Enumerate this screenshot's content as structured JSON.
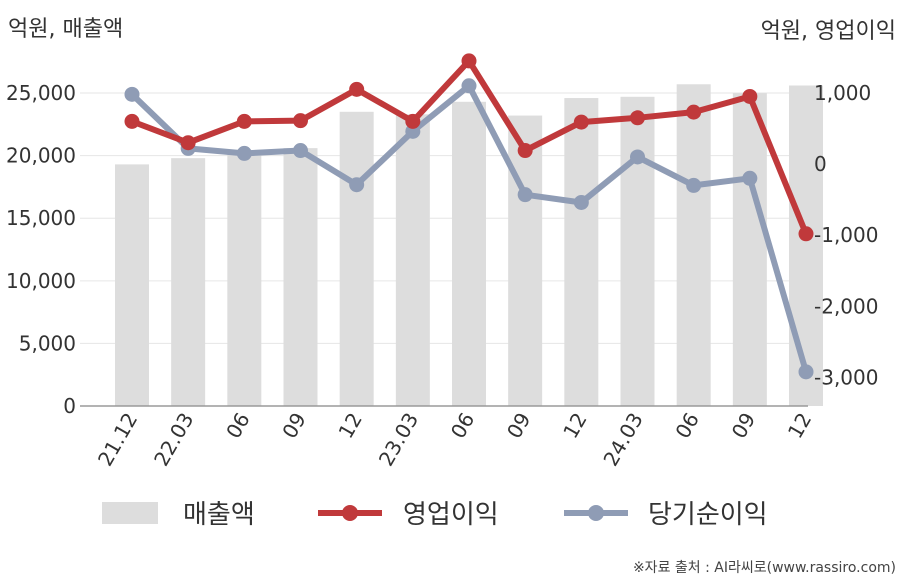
{
  "chart_data": {
    "type": "bar",
    "left_axis_title": "억원, 매출액",
    "right_axis_title": "억원, 영업이익",
    "categories": [
      "21.12",
      "22.03",
      "06",
      "09",
      "12",
      "23.03",
      "06",
      "09",
      "12",
      "24.03",
      "06",
      "09",
      "12"
    ],
    "left_ticks": [
      "0",
      "5,000",
      "10,000",
      "15,000",
      "20,000",
      "25,000"
    ],
    "right_ticks": [
      "-3,000",
      "-2,000",
      "-1,000",
      "0",
      "1,000"
    ],
    "ylim_left": [
      0,
      27000
    ],
    "ylim_right": [
      -3400,
      1350
    ],
    "grid": true,
    "legend_position": "bottom",
    "series": [
      {
        "name": "매출액",
        "type": "bar",
        "axis": "left",
        "color": "#dddddd",
        "values": [
          19300,
          19800,
          20300,
          20600,
          23500,
          23300,
          24300,
          23200,
          24600,
          24700,
          25700,
          25000,
          25600
        ]
      },
      {
        "name": "영업이익",
        "type": "line",
        "axis": "right",
        "color": "#c0393b",
        "values": [
          600,
          300,
          600,
          610,
          1050,
          600,
          1450,
          190,
          590,
          650,
          730,
          950,
          -980
        ]
      },
      {
        "name": "당기순이익",
        "type": "line",
        "axis": "right",
        "color": "#8f9cb5",
        "values": [
          980,
          220,
          150,
          190,
          -290,
          460,
          1100,
          -430,
          -540,
          100,
          -300,
          -200,
          -2920
        ]
      }
    ]
  },
  "source_note": "※자료 출처 : AI라씨로(www.rassiro.com)"
}
